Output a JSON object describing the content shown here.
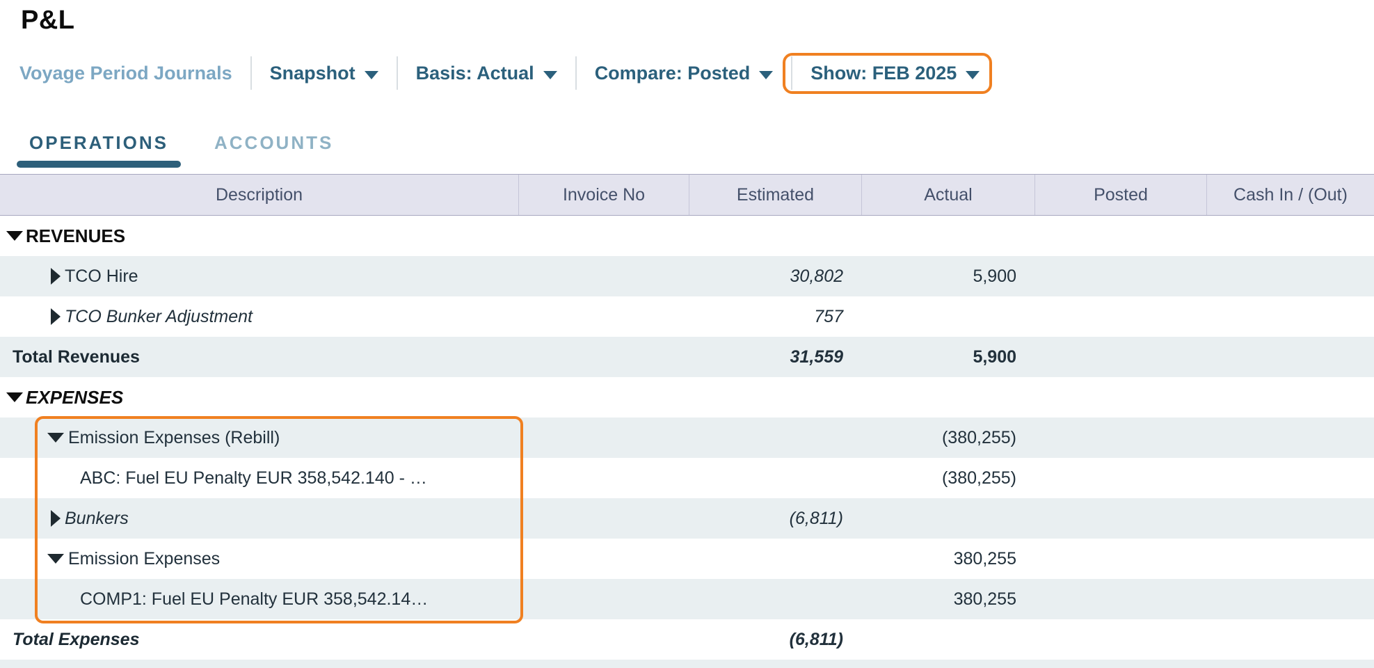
{
  "page": {
    "title": "P&L"
  },
  "colors": {
    "accent_orange": "#f08021",
    "toolbar_teal": "#2b607c",
    "link_blue": "#7ca7c3",
    "active_tab": "#2d5f7a",
    "shaded_row": "#e9eff1",
    "header_bg": "#e3e3ee"
  },
  "toolbar": {
    "link": "Voyage Period Journals",
    "dropdowns": [
      {
        "label": "Snapshot",
        "highlighted": false
      },
      {
        "label": "Basis: Actual",
        "highlighted": false
      },
      {
        "label": "Compare: Posted",
        "highlighted": false
      },
      {
        "label": "Show: FEB 2025",
        "highlighted": true
      }
    ]
  },
  "tabs": [
    {
      "label": "OPERATIONS",
      "active": true
    },
    {
      "label": "ACCOUNTS",
      "active": false
    }
  ],
  "table": {
    "columns": [
      "Description",
      "Invoice No",
      "Estimated",
      "Actual",
      "Posted",
      "Cash In / (Out)"
    ],
    "rows": [
      {
        "label": "REVENUES",
        "type": "section",
        "arrow": "down",
        "italic": false,
        "shaded": false,
        "invoice_no": "",
        "estimated": "",
        "actual": "",
        "posted": "",
        "cash_in_out": ""
      },
      {
        "label": "TCO Hire",
        "type": "category",
        "arrow": "right",
        "italic": false,
        "shaded": true,
        "invoice_no": "",
        "estimated": "30,802",
        "actual": "5,900",
        "posted": "",
        "cash_in_out": ""
      },
      {
        "label": "TCO Bunker Adjustment",
        "type": "category",
        "arrow": "right",
        "italic": true,
        "shaded": false,
        "invoice_no": "",
        "estimated": "757",
        "actual": "",
        "posted": "",
        "cash_in_out": ""
      },
      {
        "label": "Total Revenues",
        "type": "total",
        "arrow": "none",
        "italic": false,
        "shaded": true,
        "invoice_no": "",
        "estimated": "31,559",
        "actual": "5,900",
        "posted": "",
        "cash_in_out": ""
      },
      {
        "label": "EXPENSES",
        "type": "section",
        "arrow": "down",
        "italic": true,
        "shaded": false,
        "invoice_no": "",
        "estimated": "",
        "actual": "",
        "posted": "",
        "cash_in_out": ""
      },
      {
        "label": "Emission Expenses (Rebill)",
        "type": "category",
        "arrow": "down",
        "italic": false,
        "shaded": true,
        "invoice_no": "",
        "estimated": "",
        "actual": "(380,255)",
        "posted": "",
        "cash_in_out": ""
      },
      {
        "label": "ABC: Fuel EU Penalty EUR 358,542.140 - …",
        "type": "detail",
        "arrow": "none",
        "italic": false,
        "shaded": false,
        "invoice_no": "",
        "estimated": "",
        "actual": "(380,255)",
        "posted": "",
        "cash_in_out": ""
      },
      {
        "label": "Bunkers",
        "type": "category",
        "arrow": "right",
        "italic": true,
        "shaded": true,
        "invoice_no": "",
        "estimated": "(6,811)",
        "actual": "",
        "posted": "",
        "cash_in_out": ""
      },
      {
        "label": "Emission Expenses",
        "type": "category",
        "arrow": "down",
        "italic": false,
        "shaded": false,
        "invoice_no": "",
        "estimated": "",
        "actual": "380,255",
        "posted": "",
        "cash_in_out": ""
      },
      {
        "label": "COMP1: Fuel EU Penalty EUR 358,542.14…",
        "type": "detail",
        "arrow": "none",
        "italic": false,
        "shaded": true,
        "invoice_no": "",
        "estimated": "",
        "actual": "380,255",
        "posted": "",
        "cash_in_out": ""
      },
      {
        "label": "Total Expenses",
        "type": "total",
        "arrow": "none",
        "italic": true,
        "shaded": false,
        "invoice_no": "",
        "estimated": "(6,811)",
        "actual": "",
        "posted": "",
        "cash_in_out": ""
      }
    ]
  }
}
